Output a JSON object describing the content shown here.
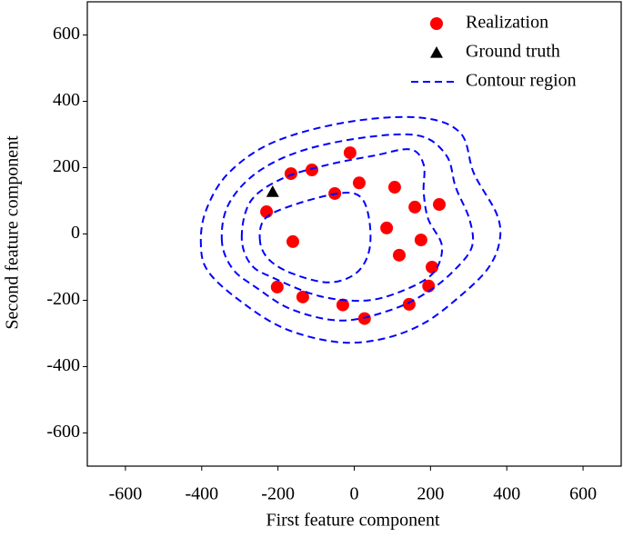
{
  "chart_data": {
    "type": "scatter",
    "xlabel": "First feature component",
    "ylabel": "Second feature component",
    "xlim": [
      -700,
      700
    ],
    "ylim": [
      -700,
      700
    ],
    "xticks": [
      -600,
      -400,
      -200,
      0,
      200,
      400,
      600
    ],
    "yticks": [
      -600,
      -400,
      -200,
      0,
      200,
      400,
      600
    ],
    "legend": "upper right",
    "series": [
      {
        "name": "Realization",
        "color": "#ff0000",
        "marker": "circle",
        "x": [
          -166,
          -111,
          -11,
          13,
          -51,
          106,
          159,
          223,
          -230,
          85,
          175,
          -161,
          118,
          204,
          195,
          -202,
          -135,
          -30,
          144,
          27
        ],
        "values": [
          182,
          193,
          245,
          154,
          122,
          141,
          81,
          89,
          67,
          18,
          -18,
          -23,
          -64,
          -100,
          -157,
          -160,
          -190,
          -214,
          -212,
          -255
        ]
      },
      {
        "name": "Ground truth",
        "color": "#000000",
        "marker": "triangle",
        "x": [
          -214
        ],
        "values": [
          127
        ]
      },
      {
        "name": "Contour region",
        "color": "#0000ff",
        "marker": "dashed",
        "lines": [
          {
            "x": [
              -402,
              -390,
              -331,
              -211,
              -20,
              171,
              278,
              314,
              374,
              381,
              350,
              278,
              183,
              75,
              -44,
              -187,
              -307,
              -383
            ],
            "values": [
              -37,
              67,
              182,
              277,
              337,
              351,
              305,
              182,
              59,
              -23,
              -105,
              -187,
              -269,
              -316,
              -326,
              -283,
              -195,
              -113
            ]
          },
          {
            "x": [
              -347,
              -331,
              -259,
              -140,
              27,
              171,
              242,
              266,
              302,
              309,
              266,
              195,
              99,
              -32,
              -163,
              -259,
              -319
            ],
            "values": [
              -23,
              86,
              182,
              250,
              291,
              296,
              236,
              141,
              45,
              -37,
              -105,
              -173,
              -228,
              -261,
              -228,
              -160,
              -105
            ]
          },
          {
            "x": [
              -295,
              -271,
              -187,
              -68,
              51,
              147,
              182,
              182,
              194,
              230,
              206,
              123,
              27,
              -92,
              -211,
              -271
            ],
            "values": [
              -10,
              100,
              168,
              209,
              236,
              255,
              209,
              127,
              45,
              -37,
              -119,
              -173,
              -201,
              -187,
              -133,
              -92
            ]
          },
          {
            "x": [
              -247,
              -235,
              -163,
              -44,
              15,
              39,
              39,
              4,
              -68,
              -163,
              -223
            ],
            "values": [
              -23,
              45,
              86,
              122,
              113,
              45,
              -51,
              -119,
              -146,
              -119,
              -78
            ]
          }
        ]
      }
    ]
  }
}
